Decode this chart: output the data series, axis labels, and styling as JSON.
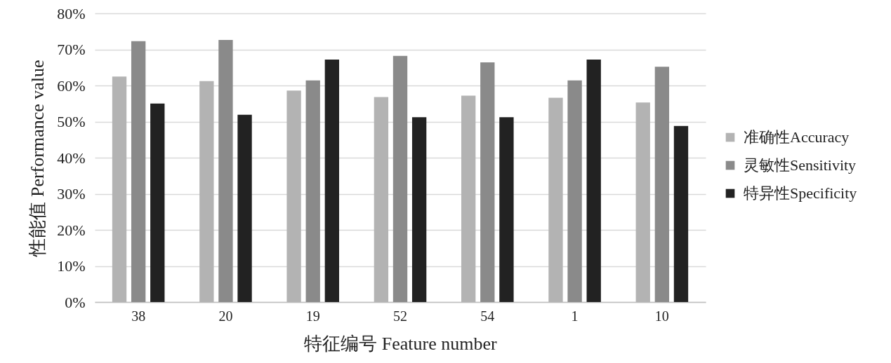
{
  "chart_data": {
    "type": "bar",
    "xlabel": "特征编号  Feature number",
    "ylabel": "性能值 Performance value",
    "categories": [
      "38",
      "20",
      "19",
      "52",
      "54",
      "1",
      "10"
    ],
    "series": [
      {
        "name": "准确性Accuracy",
        "color": "#b3b3b3",
        "values": [
          62.5,
          61.2,
          58.6,
          56.8,
          57.2,
          56.6,
          55.3
        ]
      },
      {
        "name": "灵敏性Sensitivity",
        "color": "#8a8a8a",
        "values": [
          72.3,
          72.6,
          61.4,
          68.2,
          66.4,
          61.4,
          65.2
        ]
      },
      {
        "name": "特异性Specificity",
        "color": "#222222",
        "values": [
          55.0,
          51.9,
          67.2,
          51.2,
          51.2,
          67.2,
          48.8
        ]
      }
    ],
    "ylim": [
      0,
      80
    ],
    "yticks": [
      {
        "value": 0,
        "label": "0%"
      },
      {
        "value": 10,
        "label": "10%"
      },
      {
        "value": 20,
        "label": "20%"
      },
      {
        "value": 30,
        "label": "30%"
      },
      {
        "value": 40,
        "label": "40%"
      },
      {
        "value": 50,
        "label": "50%"
      },
      {
        "value": 60,
        "label": "60%"
      },
      {
        "value": 70,
        "label": "70%"
      },
      {
        "value": 80,
        "label": "80%"
      }
    ],
    "grid": "y",
    "legend": "right"
  }
}
